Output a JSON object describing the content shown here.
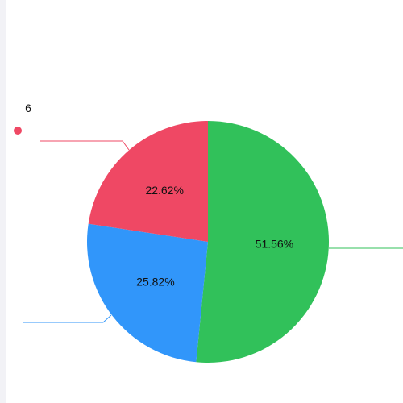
{
  "chart_data": {
    "type": "pie",
    "categories": [
      null,
      null,
      "6"
    ],
    "values": [
      51.56,
      25.82,
      22.62
    ],
    "value_labels": [
      "51.56%",
      "25.82%",
      "22.62%"
    ],
    "colors": [
      "#31c15a",
      "#3196fa",
      "#ef4864"
    ]
  }
}
